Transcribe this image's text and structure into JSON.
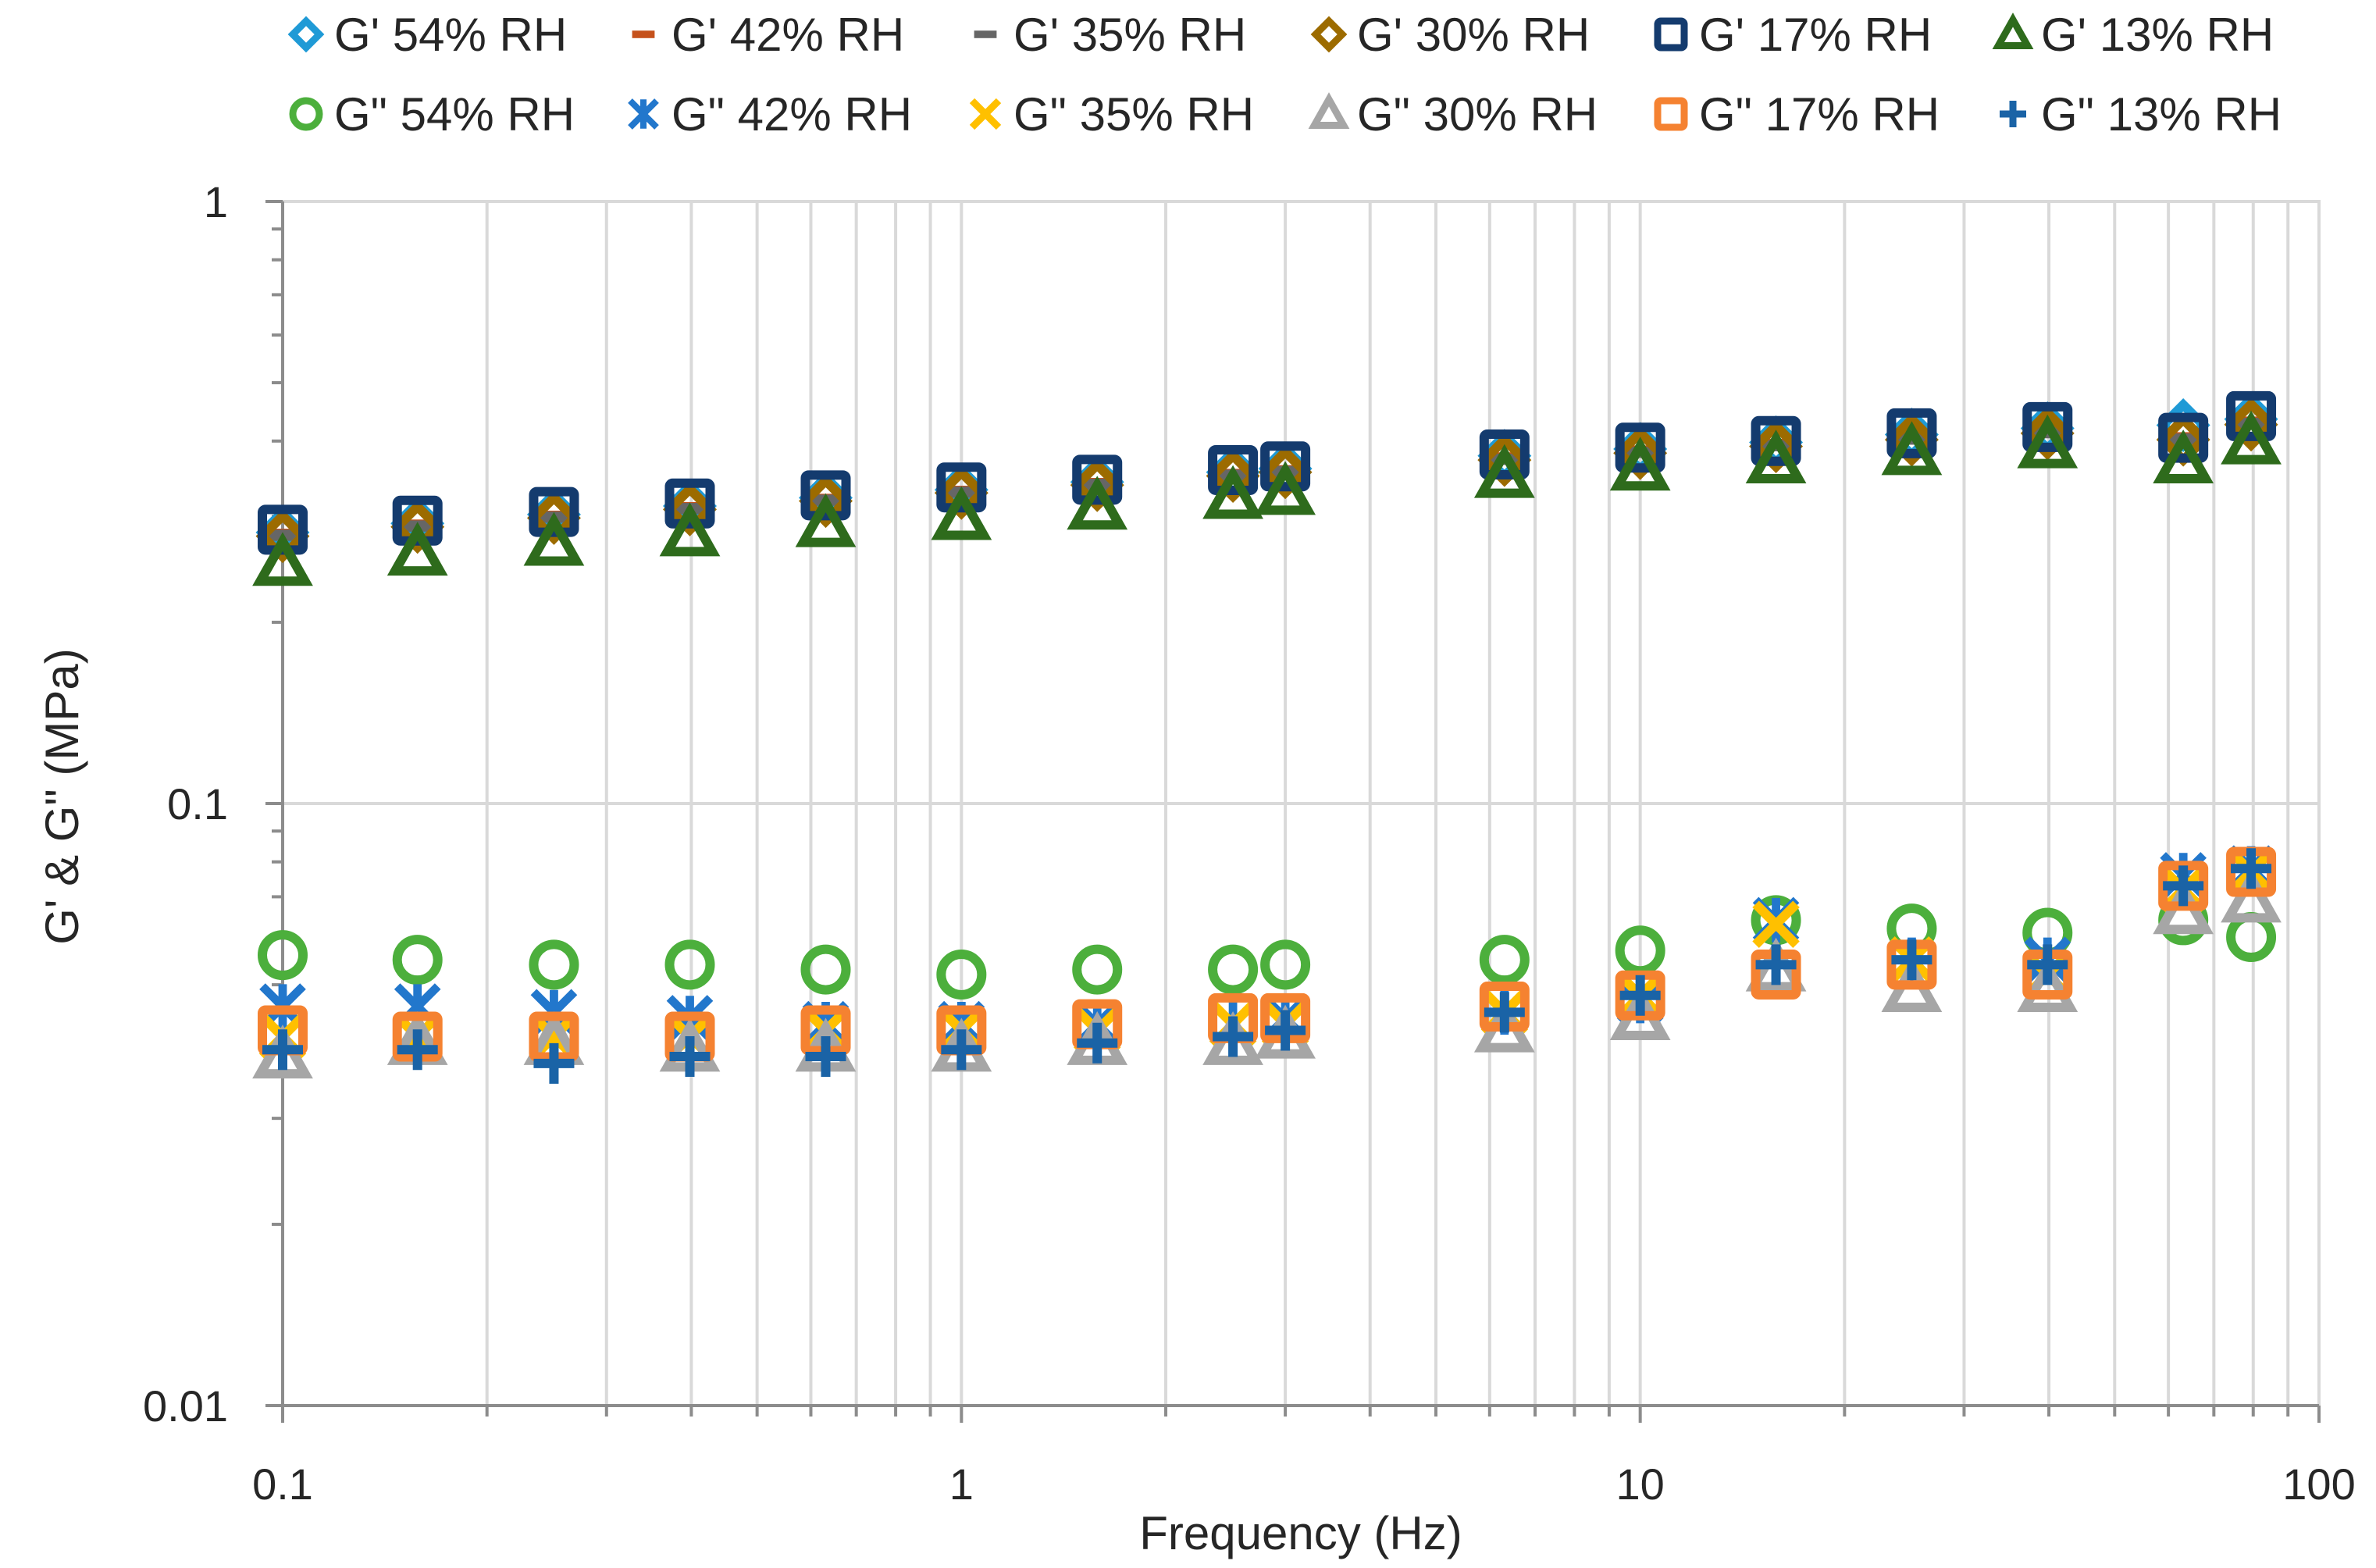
{
  "chart_data": {
    "type": "scatter",
    "title": "",
    "xlabel": "Frequency (Hz)",
    "ylabel": "G' & G\" (MPa)",
    "xscale": "log",
    "yscale": "log",
    "xlim": [
      0.1,
      100
    ],
    "ylim": [
      0.01,
      1
    ],
    "grid": true,
    "legend": "top",
    "xticks": [
      {
        "value": 0.1,
        "label": "0.1"
      },
      {
        "value": 1,
        "label": "1"
      },
      {
        "value": 10,
        "label": "10"
      },
      {
        "value": 100,
        "label": "100"
      }
    ],
    "yticks": [
      {
        "value": 0.01,
        "label": "0.01"
      },
      {
        "value": 0.1,
        "label": "0.1"
      },
      {
        "value": 1,
        "label": "1"
      }
    ],
    "x": [
      0.1,
      0.158,
      0.251,
      0.398,
      0.631,
      1.0,
      1.585,
      2.512,
      3.0,
      6.31,
      10.0,
      15.85,
      25.12,
      39.81,
      63.1,
      79.43
    ],
    "series": [
      {
        "name": "G' 54% RH",
        "marker": "diamond-open",
        "color": "#1f9ad6",
        "values": [
          0.282,
          0.292,
          0.302,
          0.312,
          0.322,
          0.332,
          0.342,
          0.355,
          0.36,
          0.378,
          0.388,
          0.398,
          0.41,
          0.42,
          0.425,
          0.435
        ]
      },
      {
        "name": "G' 42% RH",
        "marker": "bar",
        "color": "#c5511b",
        "values": [
          0.28,
          0.29,
          0.3,
          0.31,
          0.32,
          0.33,
          0.34,
          0.352,
          0.357,
          0.375,
          0.385,
          0.395,
          0.405,
          0.415,
          0.405,
          0.43
        ]
      },
      {
        "name": "G' 35% RH",
        "marker": "bar",
        "color": "#666666",
        "values": [
          0.279,
          0.289,
          0.299,
          0.309,
          0.319,
          0.329,
          0.339,
          0.351,
          0.356,
          0.373,
          0.383,
          0.393,
          0.403,
          0.413,
          0.403,
          0.428
        ]
      },
      {
        "name": "G' 30% RH",
        "marker": "diamond-open",
        "color": "#9c6b00",
        "values": [
          0.278,
          0.288,
          0.298,
          0.308,
          0.318,
          0.328,
          0.338,
          0.35,
          0.355,
          0.372,
          0.382,
          0.392,
          0.402,
          0.412,
          0.402,
          0.426
        ]
      },
      {
        "name": "G' 17% RH",
        "marker": "square-open",
        "color": "#143b6e",
        "values": [
          0.285,
          0.295,
          0.305,
          0.315,
          0.325,
          0.335,
          0.345,
          0.358,
          0.363,
          0.38,
          0.39,
          0.4,
          0.412,
          0.422,
          0.405,
          0.44
        ]
      },
      {
        "name": "G' 13% RH",
        "marker": "triangle-open",
        "color": "#2e6b1c",
        "values": [
          0.25,
          0.26,
          0.27,
          0.28,
          0.29,
          0.298,
          0.31,
          0.323,
          0.328,
          0.35,
          0.36,
          0.37,
          0.382,
          0.392,
          0.37,
          0.398
        ]
      },
      {
        "name": "G\" 54% RH",
        "marker": "circle-open",
        "color": "#4caf3c",
        "values": [
          0.056,
          0.055,
          0.054,
          0.054,
          0.053,
          0.052,
          0.053,
          0.053,
          0.054,
          0.055,
          0.057,
          0.064,
          0.062,
          0.061,
          0.064,
          0.06
        ]
      },
      {
        "name": "G\" 42% RH",
        "marker": "asterisk",
        "color": "#2277cc",
        "values": [
          0.046,
          0.046,
          0.045,
          0.044,
          0.043,
          0.043,
          0.043,
          0.043,
          0.044,
          0.045,
          0.047,
          0.064,
          0.055,
          0.055,
          0.076,
          0.078
        ]
      },
      {
        "name": "G\" 35% RH",
        "marker": "x",
        "color": "#ffc000",
        "values": [
          0.041,
          0.041,
          0.041,
          0.041,
          0.042,
          0.042,
          0.042,
          0.043,
          0.043,
          0.045,
          0.048,
          0.063,
          0.055,
          0.052,
          0.072,
          0.077
        ]
      },
      {
        "name": "G\" 30% RH",
        "marker": "triangle-open",
        "color": "#a6a6a6",
        "values": [
          0.038,
          0.04,
          0.04,
          0.039,
          0.039,
          0.039,
          0.04,
          0.04,
          0.041,
          0.042,
          0.044,
          0.053,
          0.049,
          0.049,
          0.066,
          0.069
        ]
      },
      {
        "name": "G\" 17% RH",
        "marker": "square-open",
        "color": "#f58231",
        "values": [
          0.042,
          0.041,
          0.041,
          0.041,
          0.042,
          0.042,
          0.043,
          0.044,
          0.044,
          0.046,
          0.048,
          0.052,
          0.054,
          0.052,
          0.073,
          0.077
        ]
      },
      {
        "name": "G\" 13% RH",
        "marker": "plus",
        "color": "#1a63a6",
        "values": [
          0.039,
          0.039,
          0.037,
          0.038,
          0.038,
          0.039,
          0.04,
          0.041,
          0.042,
          0.045,
          0.048,
          0.054,
          0.055,
          0.054,
          0.073,
          0.078
        ]
      }
    ]
  }
}
